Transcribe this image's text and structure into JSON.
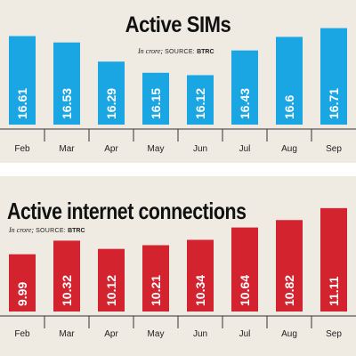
{
  "chart_data": [
    {
      "type": "bar",
      "title": "Active SIMs",
      "subtitle_prefix": "In crore;",
      "source_label": "SOURCE:",
      "source_name": "BTRC",
      "categories": [
        "Feb",
        "Mar",
        "Apr",
        "May",
        "Jun",
        "Jul",
        "Aug",
        "Sep"
      ],
      "values": [
        16.61,
        16.53,
        16.29,
        16.15,
        16.12,
        16.43,
        16.6,
        16.71
      ],
      "value_labels": [
        "16.61",
        "16.53",
        "16.29",
        "16.15",
        "16.12",
        "16.43",
        "16.6",
        "16.71"
      ],
      "bar_color": "#1aa6e3",
      "ylim": [
        15.5,
        16.75
      ]
    },
    {
      "type": "bar",
      "title": "Active internet connections",
      "subtitle_prefix": "In crore;",
      "source_label": "SOURCE:",
      "source_name": "BTRC",
      "categories": [
        "Feb",
        "Mar",
        "Apr",
        "May",
        "Jun",
        "Jul",
        "Aug",
        "Sep"
      ],
      "values": [
        9.99,
        10.32,
        10.12,
        10.21,
        10.34,
        10.64,
        10.82,
        11.11
      ],
      "value_labels": [
        "9.99",
        "10.32",
        "10.12",
        "10.21",
        "10.34",
        "10.64",
        "10.82",
        "11.11"
      ],
      "bar_color": "#d3232f",
      "ylim": [
        8.6,
        11.15
      ]
    }
  ]
}
